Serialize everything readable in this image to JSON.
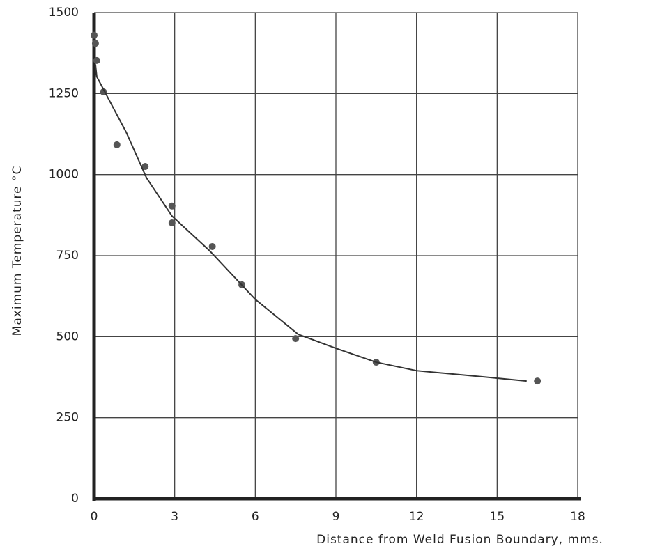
{
  "chart_data": {
    "type": "scatter",
    "x_label": "Distance from Weld Fusion Boundary, mms.",
    "y_label": "Maximum Temperature °C",
    "xlim": [
      0,
      18
    ],
    "xticks": [
      0,
      3,
      6,
      9,
      12,
      15,
      18
    ],
    "ylim": [
      0,
      1500
    ],
    "yticks": [
      0,
      250,
      500,
      750,
      1000,
      1250,
      1500
    ],
    "grid": true,
    "series": [
      {
        "mode": "markers",
        "color": "#555555",
        "x": [
          0,
          0.05,
          0.1,
          0.35,
          0.85,
          1.9,
          2.9,
          2.9,
          4.4,
          5.5,
          7.5,
          10.5,
          16.5
        ],
        "values": [
          1430,
          1405,
          1352,
          1255,
          1092,
          1025,
          903,
          851,
          778,
          660,
          494,
          421,
          363
        ]
      },
      {
        "mode": "line",
        "color": "#333333",
        "x": [
          0.05,
          0.1,
          1.2,
          1.95,
          2.9,
          4.3,
          6,
          7.6,
          9,
          10.5,
          12,
          14.6,
          16.1
        ],
        "values": [
          1340,
          1302,
          1130,
          990,
          872,
          765,
          615,
          507,
          464,
          421,
          395,
          375,
          363
        ]
      }
    ]
  }
}
